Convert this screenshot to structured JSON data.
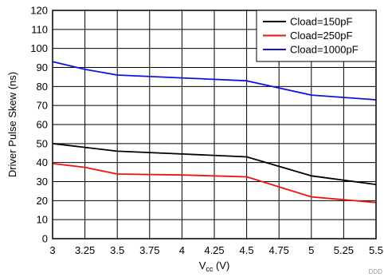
{
  "chart_data": {
    "type": "line",
    "title": "",
    "xlabel_main": "V",
    "xlabel_sub": "cc",
    "xlabel_unit": " (V)",
    "ylabel": "Driver Pulse Skew (ns)",
    "xlim": [
      3,
      5.5
    ],
    "ylim": [
      0,
      120
    ],
    "xticks": [
      "3",
      "3.25",
      "3.5",
      "3.75",
      "4",
      "4.25",
      "4.5",
      "4.75",
      "5",
      "5.25",
      "5.5"
    ],
    "yticks": [
      "0",
      "10",
      "20",
      "30",
      "40",
      "50",
      "60",
      "70",
      "80",
      "90",
      "100",
      "110",
      "120"
    ],
    "grid": true,
    "legend_position": "top-right",
    "series": [
      {
        "name": "Cload=150pF",
        "color": "#000000",
        "x": [
          3.0,
          3.25,
          3.5,
          4.0,
          4.5,
          5.0,
          5.5
        ],
        "y": [
          50,
          48,
          46,
          44.5,
          43,
          33,
          28.5
        ]
      },
      {
        "name": "Cload=250pF",
        "color": "#ee1111",
        "x": [
          3.0,
          3.25,
          3.5,
          4.0,
          4.5,
          5.0,
          5.5
        ],
        "y": [
          39.5,
          37.5,
          34,
          33.5,
          32.5,
          22,
          19
        ]
      },
      {
        "name": "Cload=1000pF",
        "color": "#1111dd",
        "x": [
          3.0,
          3.25,
          3.5,
          4.0,
          4.5,
          5.0,
          5.5
        ],
        "y": [
          93,
          89,
          86,
          84.5,
          83,
          75.5,
          73
        ]
      }
    ],
    "watermark": "DDD"
  }
}
